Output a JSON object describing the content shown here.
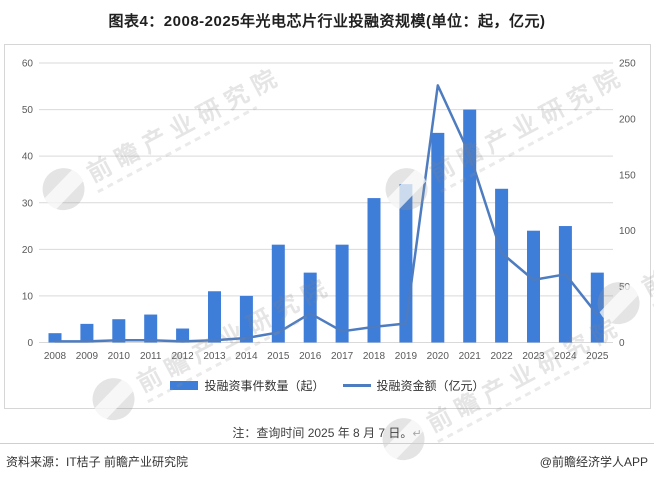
{
  "title": "图表4：2008-2025年光电芯片行业投融资规模(单位：起，亿元)",
  "note": {
    "text": "注：查询时间 2025 年 8 月 7 日。",
    "return_mark": "↵"
  },
  "source": {
    "label": "资料来源：IT桔子 前瞻产业研究院",
    "credit": "@前瞻经济学人APP"
  },
  "watermark": {
    "text": "前瞻产业研究院",
    "logo": "forward-swoosh-logo"
  },
  "colors": {
    "bar": "#3e7dd8",
    "line": "#4e7cc0",
    "grid": "#d9d9d9",
    "axis_text": "#595959",
    "border": "#d6d6d6"
  },
  "chart_data": {
    "type": "bar",
    "subtype": "bar+line combo, dual axis",
    "categories": [
      "2008",
      "2009",
      "2010",
      "2011",
      "2012",
      "2013",
      "2014",
      "2015",
      "2016",
      "2017",
      "2018",
      "2019",
      "2020",
      "2021",
      "2022",
      "2023",
      "2024",
      "2025"
    ],
    "series": [
      {
        "name": "投融资事件数量（起）",
        "type": "bar",
        "axis": "left",
        "values": [
          2,
          4,
          5,
          6,
          3,
          11,
          10,
          21,
          15,
          21,
          31,
          34,
          45,
          50,
          33,
          24,
          25,
          15
        ]
      },
      {
        "name": "投融资金额（亿元）",
        "type": "line",
        "axis": "right",
        "values": [
          1,
          1,
          2,
          2,
          1,
          2,
          4,
          9,
          26,
          10,
          14,
          17,
          230,
          168,
          80,
          56,
          61,
          25
        ]
      }
    ],
    "left_axis": {
      "min": 0,
      "max": 60,
      "step": 10,
      "ticks": [
        0,
        10,
        20,
        30,
        40,
        50,
        60
      ]
    },
    "right_axis": {
      "min": 0,
      "max": 250,
      "step": 50,
      "ticks": [
        0,
        50,
        100,
        150,
        200,
        250
      ]
    },
    "grid": true,
    "legend_position": "bottom",
    "title": "图表4：2008-2025年光电芯片行业投融资规模(单位：起，亿元)"
  }
}
